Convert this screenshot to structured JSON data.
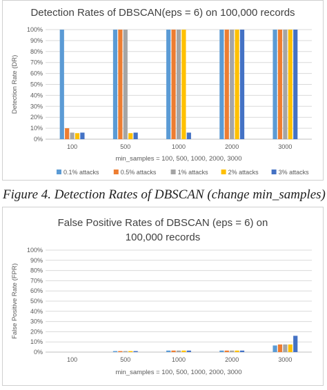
{
  "chart_data": [
    {
      "type": "bar",
      "title": "Detection Rates of DBSCAN(eps = 6) on 100,000 records",
      "xlabel": "min_samples = 100, 500, 1000, 2000, 3000",
      "ylabel": "Detection Rate (DR)",
      "categories": [
        "100",
        "500",
        "1000",
        "2000",
        "3000"
      ],
      "ylim": [
        0,
        100
      ],
      "yticks": [
        "0%",
        "10%",
        "20%",
        "30%",
        "40%",
        "50%",
        "60%",
        "70%",
        "80%",
        "90%",
        "100%"
      ],
      "legend_position": "bottom",
      "grid": true,
      "series": [
        {
          "name": "0.1% attacks",
          "color": "#5B9BD5",
          "values": [
            100,
            100,
            100,
            100,
            100
          ]
        },
        {
          "name": "0.5% attacks",
          "color": "#ED7D31",
          "values": [
            10,
            100,
            100,
            100,
            100
          ]
        },
        {
          "name": "1% attacks",
          "color": "#A5A5A5",
          "values": [
            6,
            100,
            100,
            100,
            100
          ]
        },
        {
          "name": "2% attacks",
          "color": "#FFC000",
          "values": [
            5.5,
            5.5,
            100,
            100,
            100
          ]
        },
        {
          "name": "3% attacks",
          "color": "#4472C4",
          "values": [
            6,
            6,
            6,
            100,
            100
          ]
        }
      ]
    },
    {
      "type": "bar",
      "title": "False Positive Rates of DBSCAN (eps = 6) on 100,000 records",
      "xlabel": "min_samples = 100, 500, 1000, 2000, 3000",
      "ylabel": "False Positive Rate (FPR)",
      "categories": [
        "100",
        "500",
        "1000",
        "2000",
        "3000"
      ],
      "ylim": [
        0,
        100
      ],
      "yticks": [
        "0%",
        "10%",
        "20%",
        "30%",
        "40%",
        "50%",
        "60%",
        "70%",
        "80%",
        "90%",
        "100%"
      ],
      "legend_position": "bottom",
      "grid": true,
      "series": [
        {
          "color": "#5B9BD5",
          "values": [
            0,
            1,
            1.5,
            1.5,
            6.5
          ]
        },
        {
          "color": "#ED7D31",
          "values": [
            0,
            1,
            1.5,
            1.5,
            7.5
          ]
        },
        {
          "color": "#A5A5A5",
          "values": [
            0,
            1,
            1.5,
            1.5,
            7.5
          ]
        },
        {
          "color": "#FFC000",
          "values": [
            0,
            1,
            1.5,
            1.5,
            7.5
          ]
        },
        {
          "color": "#4472C4",
          "values": [
            0,
            1,
            1.5,
            1.5,
            16
          ]
        }
      ]
    }
  ],
  "caption": "Figure 4. Detection Rates of DBSCAN (change min_samples)"
}
